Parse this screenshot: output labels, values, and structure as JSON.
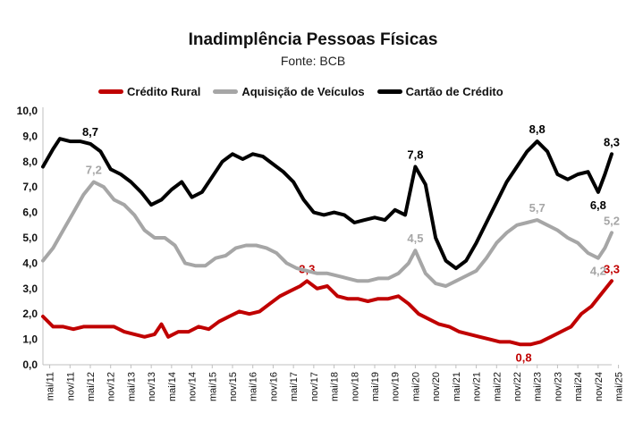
{
  "chart_data": {
    "type": "line",
    "title": "Inadimplência Pessoas Físicas",
    "subtitle": "Fonte: BCB",
    "xlabel": "",
    "ylabel": "",
    "ylim": [
      0,
      10
    ],
    "yticks": [
      "0,0",
      "1,0",
      "2,0",
      "3,0",
      "4,0",
      "5,0",
      "6,0",
      "7,0",
      "8,0",
      "9,0",
      "10,0"
    ],
    "x_start": "2011-03",
    "x_end": "2025-03",
    "xticks": [
      "mai/11",
      "nov/11",
      "mai/12",
      "nov/12",
      "mai/13",
      "nov/13",
      "mai/14",
      "nov/14",
      "mai/15",
      "nov/15",
      "mai/16",
      "nov/16",
      "mai/17",
      "nov/17",
      "mai/18",
      "nov/18",
      "mai/19",
      "nov/19",
      "mai/20",
      "nov/20",
      "mai/21",
      "nov/21",
      "mai/22",
      "nov/22",
      "mai/23",
      "nov/23",
      "mai/24",
      "nov/24",
      "mai/25"
    ],
    "grid": false,
    "legend_position": "top",
    "series": [
      {
        "name": "Crédito Rural",
        "color": "#c00000",
        "points": [
          [
            "2011-03",
            1.9
          ],
          [
            "2011-06",
            1.5
          ],
          [
            "2011-09",
            1.5
          ],
          [
            "2011-12",
            1.4
          ],
          [
            "2012-03",
            1.5
          ],
          [
            "2012-06",
            1.5
          ],
          [
            "2012-09",
            1.5
          ],
          [
            "2012-12",
            1.5
          ],
          [
            "2013-03",
            1.3
          ],
          [
            "2013-06",
            1.2
          ],
          [
            "2013-09",
            1.1
          ],
          [
            "2013-12",
            1.2
          ],
          [
            "2014-02",
            1.6
          ],
          [
            "2014-04",
            1.1
          ],
          [
            "2014-07",
            1.3
          ],
          [
            "2014-10",
            1.3
          ],
          [
            "2015-01",
            1.5
          ],
          [
            "2015-04",
            1.4
          ],
          [
            "2015-07",
            1.7
          ],
          [
            "2015-10",
            1.9
          ],
          [
            "2016-01",
            2.1
          ],
          [
            "2016-04",
            2.0
          ],
          [
            "2016-07",
            2.1
          ],
          [
            "2016-10",
            2.4
          ],
          [
            "2017-01",
            2.7
          ],
          [
            "2017-04",
            2.9
          ],
          [
            "2017-07",
            3.1
          ],
          [
            "2017-09",
            3.3
          ],
          [
            "2017-12",
            3.0
          ],
          [
            "2018-03",
            3.1
          ],
          [
            "2018-06",
            2.7
          ],
          [
            "2018-09",
            2.6
          ],
          [
            "2018-12",
            2.6
          ],
          [
            "2019-03",
            2.5
          ],
          [
            "2019-06",
            2.6
          ],
          [
            "2019-09",
            2.6
          ],
          [
            "2019-12",
            2.7
          ],
          [
            "2020-03",
            2.4
          ],
          [
            "2020-06",
            2.0
          ],
          [
            "2020-09",
            1.8
          ],
          [
            "2020-12",
            1.6
          ],
          [
            "2021-03",
            1.5
          ],
          [
            "2021-06",
            1.3
          ],
          [
            "2021-09",
            1.2
          ],
          [
            "2021-12",
            1.1
          ],
          [
            "2022-03",
            1.0
          ],
          [
            "2022-06",
            0.9
          ],
          [
            "2022-09",
            0.9
          ],
          [
            "2022-12",
            0.8
          ],
          [
            "2023-03",
            0.8
          ],
          [
            "2023-06",
            0.9
          ],
          [
            "2023-09",
            1.1
          ],
          [
            "2023-12",
            1.3
          ],
          [
            "2024-03",
            1.5
          ],
          [
            "2024-06",
            2.0
          ],
          [
            "2024-09",
            2.3
          ],
          [
            "2024-12",
            2.8
          ],
          [
            "2025-03",
            3.3
          ]
        ],
        "annotations": [
          {
            "x": "2017-09",
            "y": 3.3,
            "label": "3,3",
            "pos": "above"
          },
          {
            "x": "2023-01",
            "y": 0.8,
            "label": "0,8",
            "pos": "below"
          },
          {
            "x": "2025-03",
            "y": 3.3,
            "label": "3,3",
            "pos": "above"
          }
        ]
      },
      {
        "name": "Aquisição de Veículos",
        "color": "#a6a6a6",
        "points": [
          [
            "2011-03",
            4.1
          ],
          [
            "2011-06",
            4.6
          ],
          [
            "2011-09",
            5.3
          ],
          [
            "2011-12",
            6.0
          ],
          [
            "2012-03",
            6.7
          ],
          [
            "2012-06",
            7.2
          ],
          [
            "2012-09",
            7.0
          ],
          [
            "2012-12",
            6.5
          ],
          [
            "2013-03",
            6.3
          ],
          [
            "2013-06",
            5.9
          ],
          [
            "2013-09",
            5.3
          ],
          [
            "2013-12",
            5.0
          ],
          [
            "2014-03",
            5.0
          ],
          [
            "2014-06",
            4.7
          ],
          [
            "2014-09",
            4.0
          ],
          [
            "2014-12",
            3.9
          ],
          [
            "2015-03",
            3.9
          ],
          [
            "2015-06",
            4.2
          ],
          [
            "2015-09",
            4.3
          ],
          [
            "2015-12",
            4.6
          ],
          [
            "2016-03",
            4.7
          ],
          [
            "2016-06",
            4.7
          ],
          [
            "2016-09",
            4.6
          ],
          [
            "2016-12",
            4.4
          ],
          [
            "2017-03",
            4.0
          ],
          [
            "2017-06",
            3.8
          ],
          [
            "2017-09",
            3.7
          ],
          [
            "2017-12",
            3.6
          ],
          [
            "2018-03",
            3.6
          ],
          [
            "2018-06",
            3.5
          ],
          [
            "2018-09",
            3.4
          ],
          [
            "2018-12",
            3.3
          ],
          [
            "2019-03",
            3.3
          ],
          [
            "2019-06",
            3.4
          ],
          [
            "2019-09",
            3.4
          ],
          [
            "2019-12",
            3.6
          ],
          [
            "2020-03",
            4.0
          ],
          [
            "2020-05",
            4.5
          ],
          [
            "2020-08",
            3.6
          ],
          [
            "2020-11",
            3.2
          ],
          [
            "2021-02",
            3.1
          ],
          [
            "2021-05",
            3.3
          ],
          [
            "2021-08",
            3.5
          ],
          [
            "2021-11",
            3.7
          ],
          [
            "2022-02",
            4.2
          ],
          [
            "2022-05",
            4.8
          ],
          [
            "2022-08",
            5.2
          ],
          [
            "2022-11",
            5.5
          ],
          [
            "2023-02",
            5.6
          ],
          [
            "2023-05",
            5.7
          ],
          [
            "2023-08",
            5.5
          ],
          [
            "2023-11",
            5.3
          ],
          [
            "2024-02",
            5.0
          ],
          [
            "2024-05",
            4.8
          ],
          [
            "2024-08",
            4.4
          ],
          [
            "2024-11",
            4.2
          ],
          [
            "2025-01",
            4.6
          ],
          [
            "2025-03",
            5.2
          ]
        ],
        "annotations": [
          {
            "x": "2012-06",
            "y": 7.2,
            "label": "7,2",
            "pos": "above"
          },
          {
            "x": "2020-05",
            "y": 4.5,
            "label": "4,5",
            "pos": "above"
          },
          {
            "x": "2023-05",
            "y": 5.7,
            "label": "5,7",
            "pos": "above"
          },
          {
            "x": "2024-11",
            "y": 4.2,
            "label": "4,2",
            "pos": "below"
          },
          {
            "x": "2025-03",
            "y": 5.2,
            "label": "5,2",
            "pos": "above"
          }
        ]
      },
      {
        "name": "Cartão de Crédito",
        "color": "#000000",
        "points": [
          [
            "2011-03",
            7.8
          ],
          [
            "2011-06",
            8.5
          ],
          [
            "2011-08",
            8.9
          ],
          [
            "2011-11",
            8.8
          ],
          [
            "2012-02",
            8.8
          ],
          [
            "2012-05",
            8.7
          ],
          [
            "2012-08",
            8.4
          ],
          [
            "2012-11",
            7.7
          ],
          [
            "2013-02",
            7.5
          ],
          [
            "2013-05",
            7.2
          ],
          [
            "2013-08",
            6.8
          ],
          [
            "2013-11",
            6.3
          ],
          [
            "2014-02",
            6.5
          ],
          [
            "2014-05",
            6.9
          ],
          [
            "2014-08",
            7.2
          ],
          [
            "2014-11",
            6.6
          ],
          [
            "2015-02",
            6.8
          ],
          [
            "2015-05",
            7.4
          ],
          [
            "2015-08",
            8.0
          ],
          [
            "2015-11",
            8.3
          ],
          [
            "2016-02",
            8.1
          ],
          [
            "2016-05",
            8.3
          ],
          [
            "2016-08",
            8.2
          ],
          [
            "2016-11",
            7.9
          ],
          [
            "2017-02",
            7.6
          ],
          [
            "2017-05",
            7.2
          ],
          [
            "2017-08",
            6.5
          ],
          [
            "2017-11",
            6.0
          ],
          [
            "2018-02",
            5.9
          ],
          [
            "2018-05",
            6.0
          ],
          [
            "2018-08",
            5.9
          ],
          [
            "2018-11",
            5.6
          ],
          [
            "2019-02",
            5.7
          ],
          [
            "2019-05",
            5.8
          ],
          [
            "2019-08",
            5.7
          ],
          [
            "2019-11",
            6.1
          ],
          [
            "2020-02",
            5.9
          ],
          [
            "2020-05",
            7.8
          ],
          [
            "2020-08",
            7.1
          ],
          [
            "2020-11",
            5.0
          ],
          [
            "2021-02",
            4.1
          ],
          [
            "2021-05",
            3.8
          ],
          [
            "2021-08",
            4.1
          ],
          [
            "2021-11",
            4.8
          ],
          [
            "2022-02",
            5.6
          ],
          [
            "2022-05",
            6.4
          ],
          [
            "2022-08",
            7.2
          ],
          [
            "2022-11",
            7.8
          ],
          [
            "2023-02",
            8.4
          ],
          [
            "2023-05",
            8.8
          ],
          [
            "2023-08",
            8.4
          ],
          [
            "2023-11",
            7.5
          ],
          [
            "2024-02",
            7.3
          ],
          [
            "2024-05",
            7.5
          ],
          [
            "2024-08",
            7.6
          ],
          [
            "2024-11",
            6.8
          ],
          [
            "2025-01",
            7.5
          ],
          [
            "2025-03",
            8.3
          ]
        ],
        "annotations": [
          {
            "x": "2012-05",
            "y": 8.7,
            "label": "8,7",
            "pos": "above"
          },
          {
            "x": "2020-05",
            "y": 7.8,
            "label": "7,8",
            "pos": "above"
          },
          {
            "x": "2023-05",
            "y": 8.8,
            "label": "8,8",
            "pos": "above"
          },
          {
            "x": "2024-11",
            "y": 6.8,
            "label": "6,8",
            "pos": "below"
          },
          {
            "x": "2025-03",
            "y": 8.3,
            "label": "8,3",
            "pos": "above"
          }
        ]
      }
    ]
  }
}
